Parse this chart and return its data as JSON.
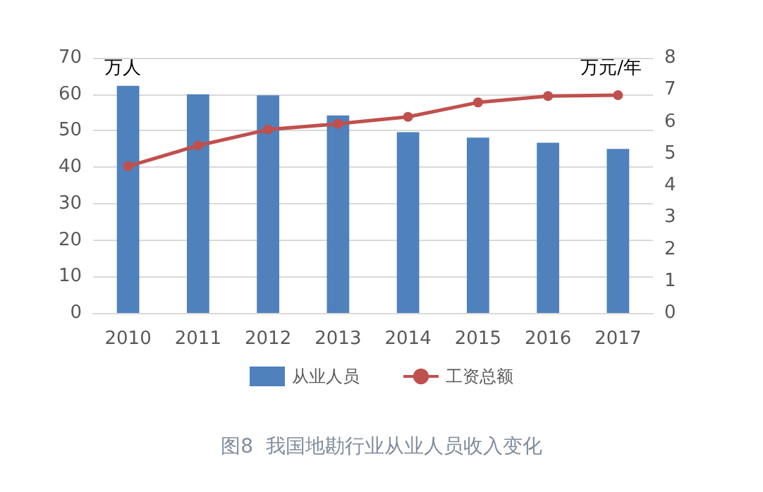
{
  "chart_data": {
    "type": "bar",
    "title": "图8  我国地勘行业从业人员收入变化",
    "ylabel": "万人",
    "y2label": "万元/年",
    "categories": [
      "2010",
      "2011",
      "2012",
      "2013",
      "2014",
      "2015",
      "2016",
      "2017"
    ],
    "series": [
      {
        "name": "从业人员",
        "color": "#4f81bd",
        "values": [
          62.3,
          60,
          59.7,
          54.2,
          49.6,
          48.1,
          46.7,
          45
        ]
      },
      {
        "name": "工资总额",
        "type": "line",
        "axis": "y2",
        "color": "#c0504d",
        "marker": "circle",
        "values": [
          4.6,
          5.25,
          5.75,
          5.93,
          6.15,
          6.6,
          6.8,
          6.83
        ]
      }
    ],
    "ylim": [
      0,
      70
    ],
    "yticks": [
      0,
      10,
      20,
      30,
      40,
      50,
      60,
      70
    ],
    "y2lim": [
      0,
      8
    ],
    "y2ticks": [
      0,
      1,
      2,
      3,
      4,
      5,
      6,
      7,
      8
    ],
    "grid": "y",
    "legend": "bottom"
  }
}
